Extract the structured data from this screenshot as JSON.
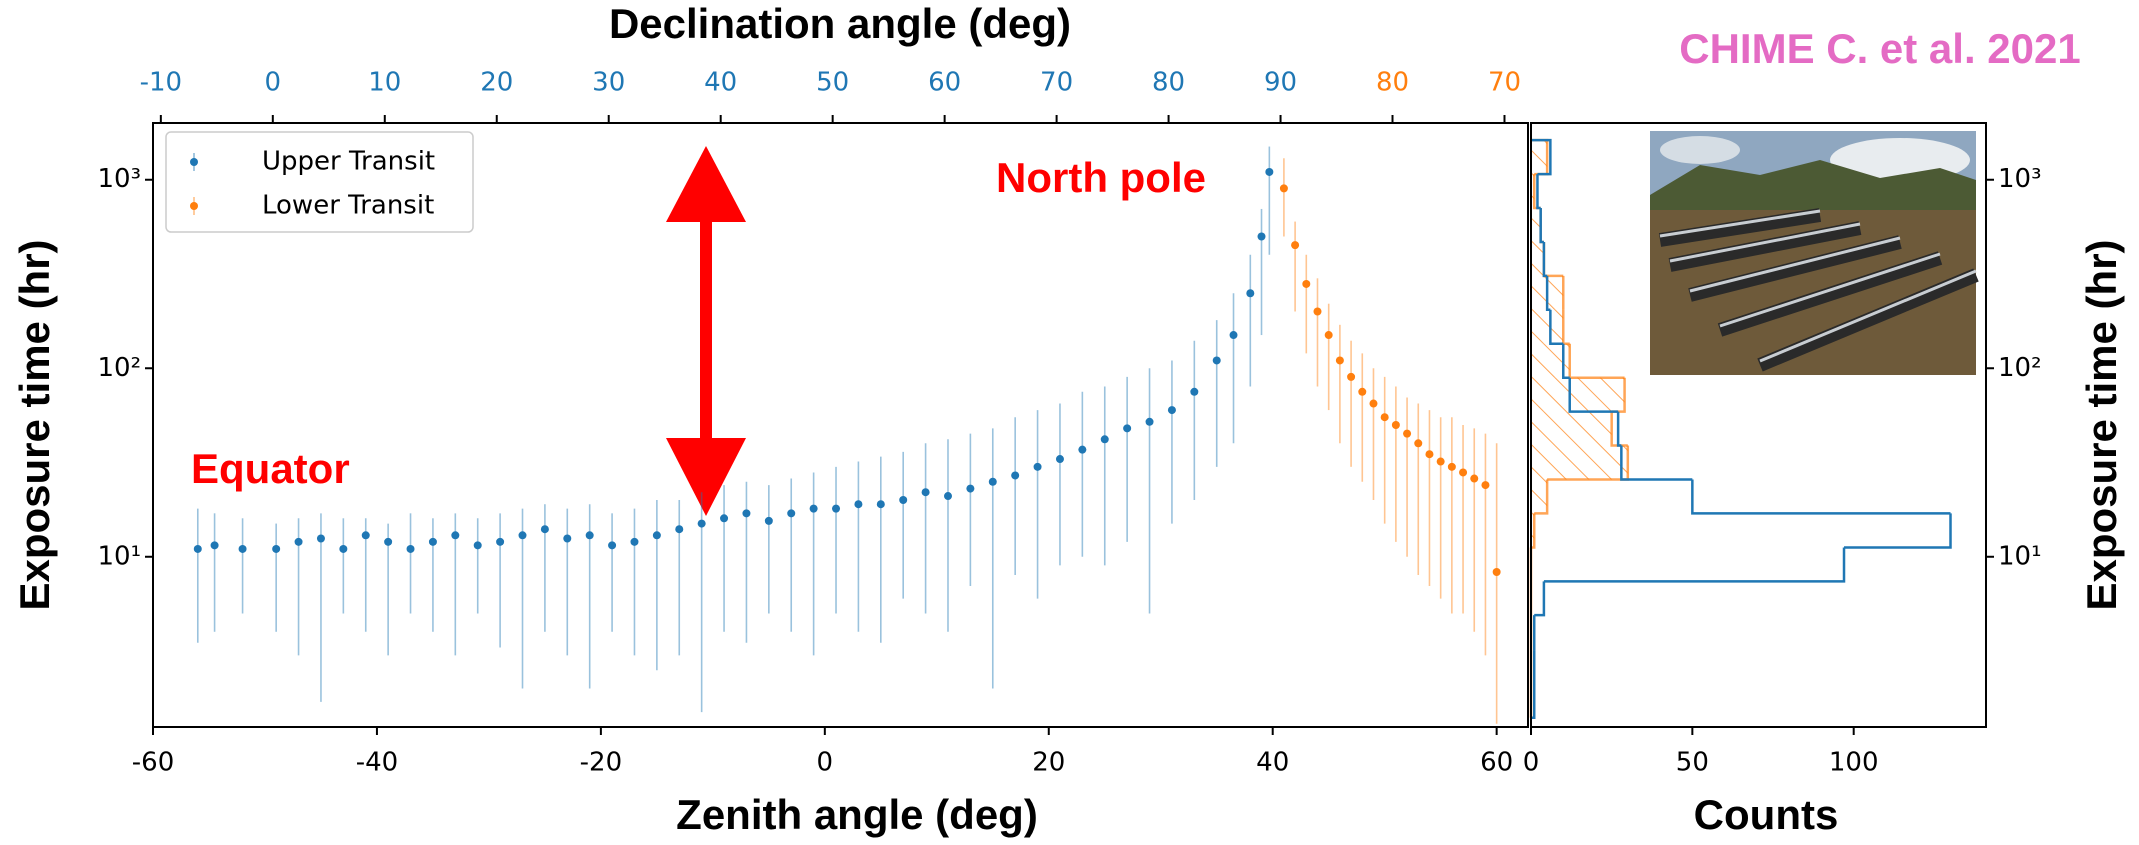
{
  "credit": "CHIME C. et al. 2021",
  "chart_data": [
    {
      "type": "scatter",
      "x2label": "Declination angle (deg)",
      "xlabel": "Zenith angle (deg)",
      "ylabel": "Exposure time (hr)",
      "log": true,
      "legend": "upper left",
      "xlim": [
        -60,
        62.8
      ],
      "xticks": [
        -60,
        -40,
        -20,
        0,
        20,
        40,
        60
      ],
      "x2ticks": [
        {
          "value": -59.3,
          "label": "-10",
          "color": "#1f77b4"
        },
        {
          "value": -49.3,
          "label": "0",
          "color": "#1f77b4"
        },
        {
          "value": -39.3,
          "label": "10",
          "color": "#1f77b4"
        },
        {
          "value": -29.3,
          "label": "20",
          "color": "#1f77b4"
        },
        {
          "value": -19.3,
          "label": "30",
          "color": "#1f77b4"
        },
        {
          "value": -9.3,
          "label": "40",
          "color": "#1f77b4"
        },
        {
          "value": 0.7,
          "label": "50",
          "color": "#1f77b4"
        },
        {
          "value": 10.7,
          "label": "60",
          "color": "#1f77b4"
        },
        {
          "value": 20.7,
          "label": "70",
          "color": "#1f77b4"
        },
        {
          "value": 30.7,
          "label": "80",
          "color": "#1f77b4"
        },
        {
          "value": 40.7,
          "label": "90",
          "color": "#1f77b4"
        },
        {
          "value": 50.7,
          "label": "80",
          "color": "#ff7f0e"
        },
        {
          "value": 60.7,
          "label": "70",
          "color": "#ff7f0e"
        }
      ],
      "ylim": [
        1.25,
        2000
      ],
      "yticks": [
        {
          "value": 10,
          "label": "10¹"
        },
        {
          "value": 100,
          "label": "10²"
        },
        {
          "value": 1000,
          "label": "10³"
        }
      ],
      "annotations": [
        {
          "text": "Equator",
          "color": "#ff0000"
        },
        {
          "text": "North pole",
          "color": "#ff0000"
        }
      ],
      "series": [
        {
          "name": "Upper Transit",
          "color": "#1f77b4",
          "x": [
            -56,
            -54.5,
            -52,
            -49,
            -47,
            -45,
            -43,
            -41,
            -39,
            -37,
            -35,
            -33,
            -31,
            -29,
            -27,
            -25,
            -23,
            -21,
            -19,
            -17,
            -15,
            -13,
            -11,
            -9,
            -7,
            -5,
            -3,
            -1,
            1,
            3,
            5,
            7,
            9,
            11,
            13,
            15,
            17,
            19,
            21,
            23,
            25,
            27,
            29,
            31,
            33,
            35,
            36.5,
            38,
            39,
            39.7
          ],
          "values": [
            11,
            11.5,
            11,
            11,
            12,
            12.5,
            11,
            13,
            12,
            11,
            12,
            13,
            11.5,
            12,
            13,
            14,
            12.5,
            13,
            11.5,
            12,
            13,
            14,
            15,
            16,
            17,
            15.5,
            17,
            18,
            18,
            19,
            19,
            20,
            22,
            21,
            23,
            25,
            27,
            30,
            33,
            37,
            42,
            48,
            52,
            60,
            75,
            110,
            150,
            250,
            500,
            1100
          ],
          "err_low": [
            3.5,
            4,
            5,
            4,
            3,
            1.7,
            5,
            4,
            3,
            5,
            4,
            3,
            5,
            3.3,
            2,
            4,
            3,
            2,
            4,
            3,
            2.5,
            3,
            1.5,
            4,
            3.5,
            5,
            4,
            3,
            5,
            4,
            3.5,
            6,
            5,
            4,
            7,
            2,
            8,
            6,
            9,
            10,
            9,
            12,
            5,
            15,
            20,
            30,
            40,
            80,
            150,
            400
          ],
          "err_high": [
            18,
            17,
            16,
            15,
            16,
            17,
            16,
            16,
            15,
            17,
            16,
            17,
            16,
            17,
            18,
            19,
            18,
            19,
            17,
            18,
            20,
            20,
            22,
            24,
            25,
            24,
            26,
            28,
            30,
            32,
            34,
            36,
            40,
            42,
            45,
            48,
            55,
            60,
            65,
            75,
            80,
            90,
            100,
            110,
            140,
            180,
            250,
            400,
            700,
            1500
          ]
        },
        {
          "name": "Lower Transit",
          "color": "#ff7f0e",
          "x": [
            41,
            42,
            43,
            44,
            45,
            46,
            47,
            48,
            49,
            50,
            51,
            52,
            53,
            54,
            55,
            56,
            57,
            58,
            59,
            60
          ],
          "values": [
            900,
            450,
            280,
            200,
            150,
            110,
            90,
            75,
            65,
            55,
            50,
            45,
            40,
            35,
            32,
            30,
            28,
            26,
            24,
            8.3
          ],
          "err_low": [
            500,
            200,
            120,
            80,
            60,
            40,
            30,
            25,
            20,
            15,
            12,
            10,
            8,
            7,
            6,
            5,
            5,
            4,
            3,
            1.3
          ],
          "err_high": [
            1300,
            600,
            400,
            300,
            220,
            170,
            140,
            120,
            100,
            90,
            80,
            70,
            65,
            60,
            55,
            55,
            50,
            48,
            45,
            40
          ]
        }
      ]
    },
    {
      "type": "histogram",
      "orientation": "horizontal",
      "xlabel": "Counts",
      "ylabel": "Exposure time (hr)",
      "log": true,
      "xlim": [
        0,
        141
      ],
      "xticks": [
        0,
        50,
        100
      ],
      "ylim": [
        1.25,
        2000
      ],
      "yticks": [
        {
          "value": 10,
          "label": "10¹"
        },
        {
          "value": 100,
          "label": "10²"
        },
        {
          "value": 1000,
          "label": "10³"
        }
      ],
      "bins": [
        1.4,
        2.1,
        3.2,
        4.9,
        7.4,
        11.2,
        17,
        25.7,
        38.9,
        58.9,
        89.1,
        134.9,
        204.2,
        309,
        467.7,
        707.9,
        1071.5,
        1621.8
      ],
      "series": [
        {
          "color": "#1f77b4",
          "hatch": false,
          "values": [
            1,
            1,
            1,
            4,
            97,
            130,
            50,
            28,
            27,
            12,
            10,
            6,
            5,
            4,
            3,
            2,
            6
          ]
        },
        {
          "color": "#ff7f0e",
          "hatch": true,
          "values": [
            0,
            0,
            0,
            0,
            0,
            1,
            5,
            30,
            25,
            29,
            12,
            10,
            10,
            4,
            3,
            1,
            5
          ]
        }
      ]
    }
  ]
}
